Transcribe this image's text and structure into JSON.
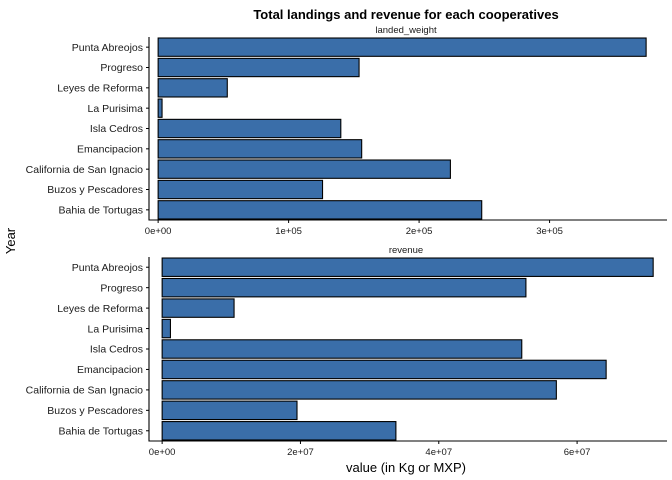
{
  "chart_data": {
    "type": "bar",
    "orientation": "horizontal",
    "title": "Total landings and revenue for each cooperatives",
    "xlabel": "value (in Kg or MXP)",
    "ylabel": "Year",
    "bar_color": "#3a6ea9",
    "bar_edge_color": "#000000",
    "categories": [
      "Bahia de Tortugas",
      "Buzos y Pescadores",
      "California de San Ignacio",
      "Emancipacion",
      "Isla Cedros",
      "La Purisima",
      "Leyes de Reforma",
      "Progreso",
      "Punta Abreojos"
    ],
    "panels": [
      {
        "name": "landed_weight",
        "values": [
          248000,
          126000,
          224000,
          156000,
          140000,
          3000,
          53000,
          154000,
          374000
        ],
        "xlim": [
          -7000,
          390000
        ],
        "ticks": [
          0,
          100000,
          200000,
          300000
        ],
        "tick_labels": [
          "0e+00",
          "1e+05",
          "2e+05",
          "3e+05"
        ]
      },
      {
        "name": "revenue",
        "values": [
          33800000,
          19500000,
          57000000,
          64200000,
          52000000,
          1200000,
          10400000,
          52600000,
          71000000
        ],
        "xlim": [
          -1900000,
          73000000
        ],
        "ticks": [
          0,
          20000000,
          40000000,
          60000000
        ],
        "tick_labels": [
          "0e+00",
          "2e+07",
          "4e+07",
          "6e+07"
        ]
      }
    ]
  }
}
